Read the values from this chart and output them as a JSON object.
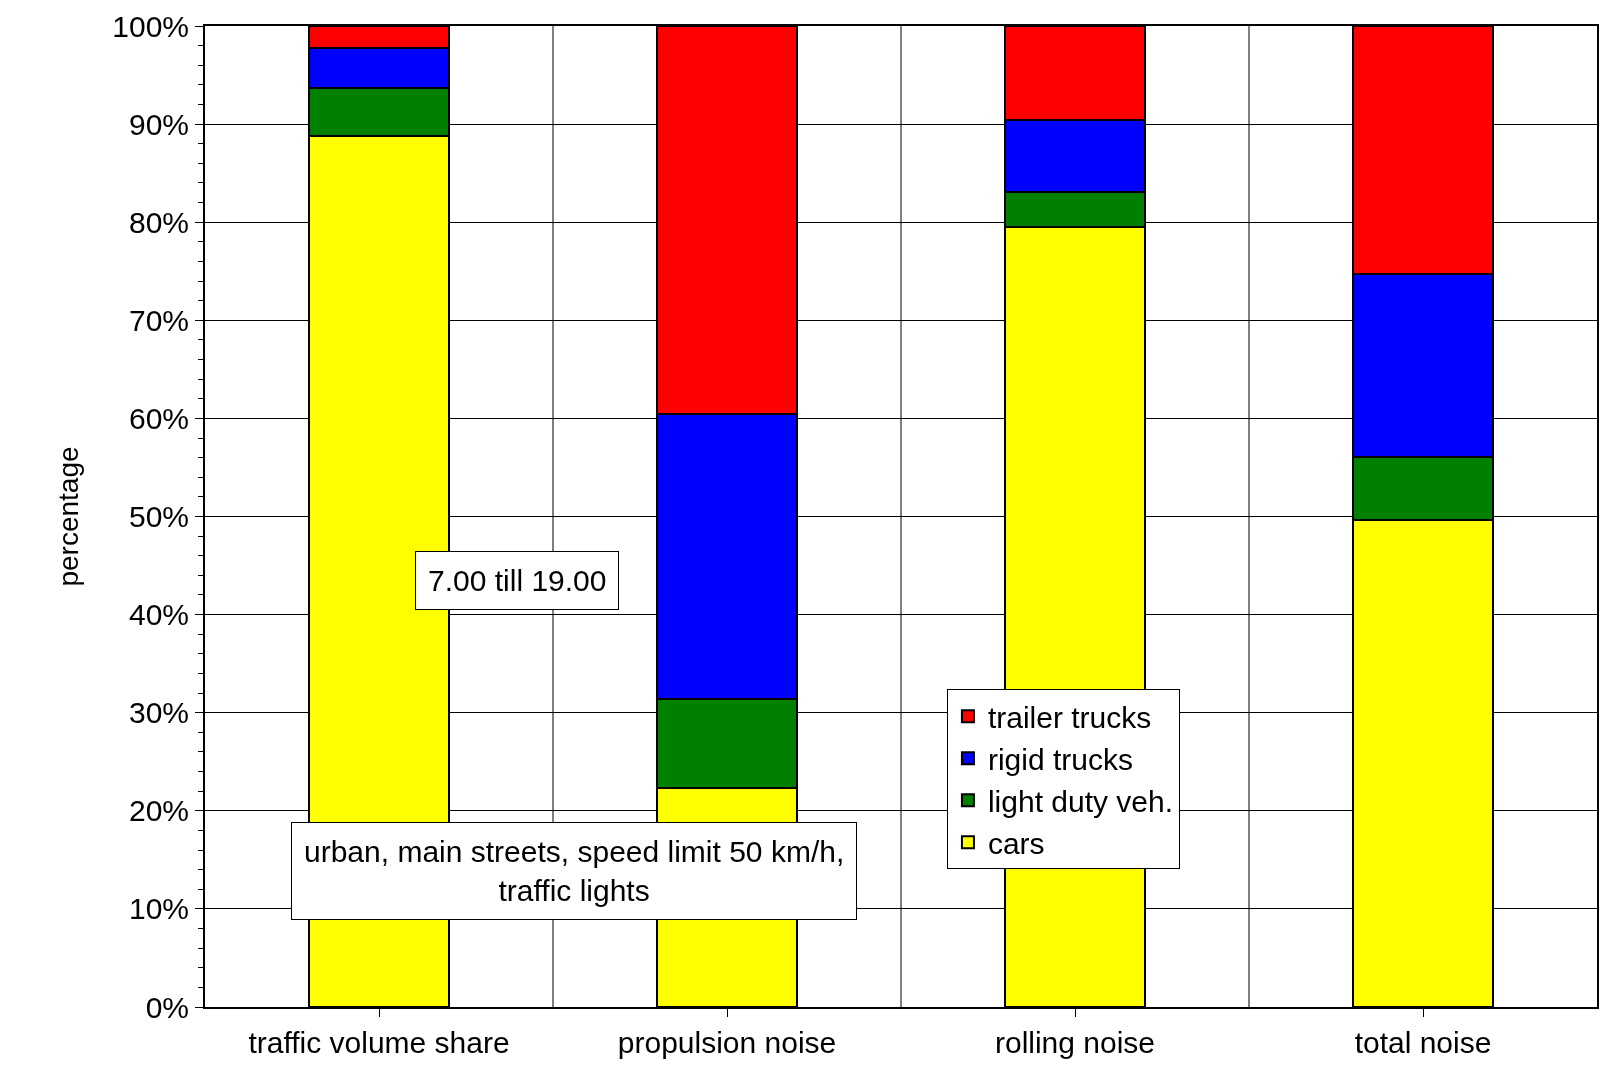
{
  "chart_data": {
    "type": "bar",
    "stacked": true,
    "ylabel": "percentage",
    "categories": [
      "traffic volume share",
      "propulsion noise",
      "rolling noise",
      "total noise"
    ],
    "series": [
      {
        "name": "cars",
        "color": "#ffff00",
        "values": [
          88.8,
          22.3,
          79.5,
          49.6
        ]
      },
      {
        "name": "light duty veh.",
        "color": "#008000",
        "values": [
          4.9,
          9.1,
          3.6,
          6.5
        ]
      },
      {
        "name": "rigid trucks",
        "color": "#0000ff",
        "values": [
          4.1,
          29.1,
          7.3,
          18.6
        ]
      },
      {
        "name": "trailer trucks",
        "color": "#ff0000",
        "values": [
          2.2,
          39.5,
          9.6,
          25.3
        ]
      }
    ],
    "ylim": [
      0,
      100
    ],
    "yticks": [
      {
        "value": 0,
        "label": "0%"
      },
      {
        "value": 10,
        "label": "10%"
      },
      {
        "value": 20,
        "label": "20%"
      },
      {
        "value": 30,
        "label": "30%"
      },
      {
        "value": 40,
        "label": "40%"
      },
      {
        "value": 50,
        "label": "50%"
      },
      {
        "value": 60,
        "label": "60%"
      },
      {
        "value": 70,
        "label": "70%"
      },
      {
        "value": 80,
        "label": "80%"
      },
      {
        "value": 90,
        "label": "90%"
      },
      {
        "value": 100,
        "label": "100%"
      },
      {
        "value": 2,
        "label": null
      },
      {
        "value": 4,
        "label": null
      },
      {
        "value": 6,
        "label": null
      },
      {
        "value": 8,
        "label": null
      },
      {
        "value": 12,
        "label": null
      },
      {
        "value": 14,
        "label": null
      },
      {
        "value": 16,
        "label": null
      },
      {
        "value": 18,
        "label": null
      },
      {
        "value": 22,
        "label": null
      },
      {
        "value": 24,
        "label": null
      },
      {
        "value": 26,
        "label": null
      },
      {
        "value": 28,
        "label": null
      },
      {
        "value": 32,
        "label": null
      },
      {
        "value": 34,
        "label": null
      },
      {
        "value": 36,
        "label": null
      },
      {
        "value": 38,
        "label": null
      },
      {
        "value": 42,
        "label": null
      },
      {
        "value": 44,
        "label": null
      },
      {
        "value": 46,
        "label": null
      },
      {
        "value": 48,
        "label": null
      },
      {
        "value": 52,
        "label": null
      },
      {
        "value": 54,
        "label": null
      },
      {
        "value": 56,
        "label": null
      },
      {
        "value": 58,
        "label": null
      },
      {
        "value": 62,
        "label": null
      },
      {
        "value": 64,
        "label": null
      },
      {
        "value": 66,
        "label": null
      },
      {
        "value": 68,
        "label": null
      },
      {
        "value": 72,
        "label": null
      },
      {
        "value": 74,
        "label": null
      },
      {
        "value": 76,
        "label": null
      },
      {
        "value": 78,
        "label": null
      },
      {
        "value": 82,
        "label": null
      },
      {
        "value": 84,
        "label": null
      },
      {
        "value": 86,
        "label": null
      },
      {
        "value": 88,
        "label": null
      },
      {
        "value": 92,
        "label": null
      },
      {
        "value": 94,
        "label": null
      },
      {
        "value": 96,
        "label": null
      },
      {
        "value": 98,
        "label": null
      }
    ],
    "grid": true,
    "legend": "bottom right",
    "annotations": [
      "7.00 till 19.00",
      "urban, main streets, speed limit 50 km/h,\ntraffic lights"
    ]
  }
}
